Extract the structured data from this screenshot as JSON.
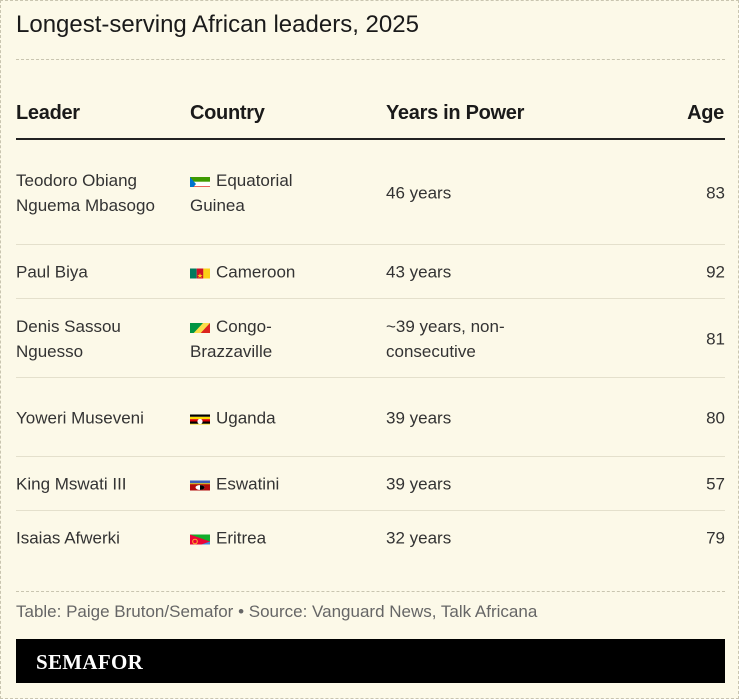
{
  "chart_data": {
    "type": "table",
    "title": "Longest-serving African leaders, 2025",
    "columns": [
      "Leader",
      "Country",
      "Years in Power",
      "Age"
    ],
    "rows": [
      {
        "leader": "Teodoro Obiang Nguema Mbasogo",
        "country": "Equatorial Guinea",
        "flag": "equatorial-guinea-flag",
        "years": "46 years",
        "age": 83
      },
      {
        "leader": "Paul Biya",
        "country": "Cameroon",
        "flag": "cameroon-flag",
        "years": "43 years",
        "age": 92
      },
      {
        "leader": "Denis Sassou Nguesso",
        "country": "Congo-Brazzaville",
        "flag": "congo-flag",
        "years": "~39 years, non-consecutive",
        "age": 81
      },
      {
        "leader": "Yoweri Museveni",
        "country": "Uganda",
        "flag": "uganda-flag",
        "years": "39 years",
        "age": 80
      },
      {
        "leader": "King Mswati III",
        "country": "Eswatini",
        "flag": "eswatini-flag",
        "years": "39 years",
        "age": 57
      },
      {
        "leader": "Isaias Afwerki",
        "country": "Eritrea",
        "flag": "eritrea-flag",
        "years": "32 years",
        "age": 79
      }
    ],
    "footnote": "Table: Paige Bruton/Semafor  • Source: Vanguard News, Talk Africana"
  },
  "brand": "SEMAFOR",
  "colors": {
    "background": "#fcf9e8",
    "header_rule": "#222222",
    "brand_bar": "#000000"
  }
}
